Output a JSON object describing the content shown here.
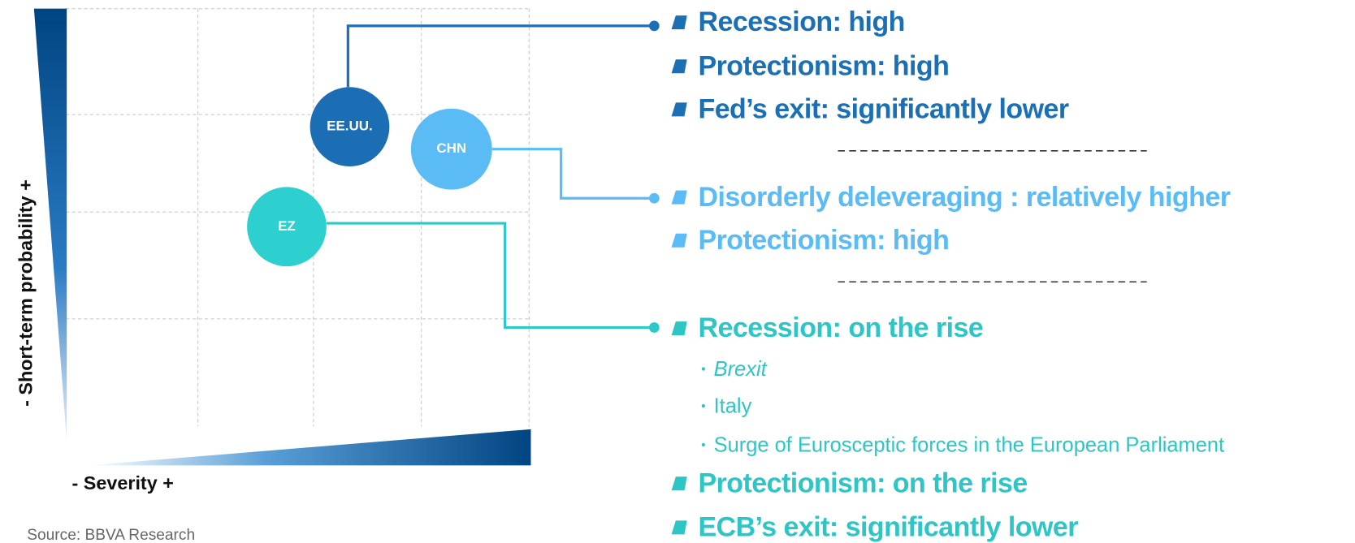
{
  "axes": {
    "y_label": "- Short-term probability +",
    "x_label": "- Severity +"
  },
  "source": "Source: BBVA Research",
  "bubbles": [
    {
      "label": "EE.UU."
    },
    {
      "label": "CHN"
    },
    {
      "label": "EZ"
    }
  ],
  "groups": [
    {
      "items": [
        {
          "text": "Recession: high"
        },
        {
          "text": "Protectionism: high"
        },
        {
          "text": "Fed’s exit: significantly lower"
        }
      ]
    },
    {
      "items": [
        {
          "text": "Disorderly deleveraging : relatively higher"
        },
        {
          "text": "Protectionism: high"
        }
      ]
    },
    {
      "items": [
        {
          "text": "Recession: on the rise",
          "subitems": [
            "Brexit",
            "Italy",
            "Surge of Eurosceptic forces in the European Parliament"
          ]
        },
        {
          "text": "Protectionism: on the rise"
        },
        {
          "text": "ECB’s exit: significantly lower"
        }
      ]
    }
  ]
}
